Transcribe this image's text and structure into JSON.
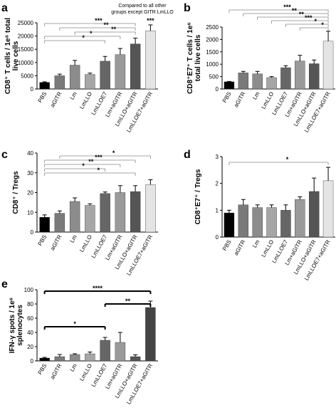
{
  "chart_data": [
    {
      "panel": "a",
      "type": "bar",
      "categories": [
        "PBS",
        "aGITR",
        "Lm",
        "LmLLO",
        "LmLLOE7",
        "Lm+aGITR",
        "LmLLO+aGITR",
        "LmLLOE7+aGITR"
      ],
      "values": [
        2500,
        5000,
        9000,
        5500,
        10500,
        13000,
        17000,
        22000
      ],
      "errors": [
        200,
        600,
        1800,
        500,
        1800,
        2300,
        2200,
        2200
      ],
      "colors": [
        "#000000",
        "#7a7a7a",
        "#8c8c8c",
        "#a6a6a6",
        "#666666",
        "#9a9a9a",
        "#555555",
        "#e4e4e4"
      ],
      "ylabel": [
        "CD8⁺ T cells / 1e⁶ total",
        "live cells"
      ],
      "ylim": [
        0,
        25000
      ],
      "yticks": [
        "0",
        "5000",
        "10000",
        "15000",
        "20000",
        "25000"
      ],
      "annotation": [
        "Compared to all other",
        "groups except GITR LmLLO"
      ],
      "comparisons": [
        {
          "from": 0,
          "to": 6,
          "label": "***"
        },
        {
          "from": 1,
          "to": 6,
          "label": "**"
        },
        {
          "from": 2,
          "to": 6,
          "label": "**"
        },
        {
          "from": 0,
          "to": 5,
          "label": "*"
        },
        {
          "from": 0,
          "to": 4,
          "label": "*"
        }
      ],
      "top_label": {
        "bar": 7,
        "label": "***"
      }
    },
    {
      "panel": "b",
      "type": "bar",
      "categories": [
        "PBS",
        "aGITR",
        "Lm",
        "LmLLO",
        "LmLLOE7",
        "Lm+aGITR",
        "LmLLO+aGITR",
        "LmLLOE7+aGITR"
      ],
      "values": [
        290,
        650,
        610,
        460,
        860,
        1130,
        1020,
        1930
      ],
      "errors": [
        15,
        60,
        100,
        40,
        80,
        230,
        150,
        400
      ],
      "colors": [
        "#000000",
        "#7a7a7a",
        "#8c8c8c",
        "#a6a6a6",
        "#666666",
        "#9a9a9a",
        "#555555",
        "#e4e4e4"
      ],
      "ylabel": [
        "CD8⁺E7⁺ T cells / 1e⁶",
        "total live cells"
      ],
      "ylim": [
        0,
        2500
      ],
      "yticks": [
        "0",
        "500",
        "1000",
        "1500",
        "2000",
        "2500"
      ],
      "comparisons": [
        {
          "from": 0,
          "to": 7,
          "label": "***"
        },
        {
          "from": 1,
          "to": 7,
          "label": "**"
        },
        {
          "from": 2,
          "to": 7,
          "label": "**"
        },
        {
          "from": 3,
          "to": 7,
          "label": "***"
        },
        {
          "from": 4,
          "to": 7,
          "label": "*"
        },
        {
          "from": 5,
          "to": 7,
          "label": "*"
        }
      ]
    },
    {
      "panel": "c",
      "type": "bar",
      "categories": [
        "PBS",
        "aGITR",
        "Lm",
        "LmLLO",
        "LmLLOE7",
        "Lm+aGITR",
        "LmLLO+aGITR",
        "LmLLOE7+aGITR"
      ],
      "values": [
        7.5,
        9.5,
        15.5,
        13.5,
        19.5,
        20,
        20.5,
        24
      ],
      "errors": [
        1.2,
        1.2,
        1.8,
        0.8,
        0.8,
        3.5,
        3,
        2.5
      ],
      "colors": [
        "#000000",
        "#7a7a7a",
        "#8c8c8c",
        "#a6a6a6",
        "#666666",
        "#9a9a9a",
        "#555555",
        "#e4e4e4"
      ],
      "ylabel": [
        "CD8⁺ / Tregs"
      ],
      "ylim": [
        0,
        40
      ],
      "yticks": [
        "0",
        "10",
        "20",
        "30",
        "40"
      ],
      "comparisons": [
        {
          "from": 1,
          "to": 7,
          "label": "*"
        },
        {
          "from": 0,
          "to": 6,
          "label": "***"
        },
        {
          "from": 0,
          "to": 5,
          "label": "**"
        },
        {
          "from": 0,
          "to": 4,
          "label": "*"
        },
        {
          "from": 0,
          "to": 6,
          "label": "*"
        }
      ]
    },
    {
      "panel": "d",
      "type": "bar",
      "categories": [
        "PBS",
        "aGITR",
        "Lm",
        "LmLLO",
        "LmLLOE7",
        "Lm+aGITR",
        "LmLLO+aGITR",
        "LmLLOE7+aGITR"
      ],
      "values": [
        0.9,
        1.2,
        1.1,
        1.1,
        1.0,
        1.4,
        1.7,
        2.1
      ],
      "errors": [
        0.1,
        0.2,
        0.1,
        0.1,
        0.2,
        0.1,
        0.5,
        0.5
      ],
      "colors": [
        "#000000",
        "#7a7a7a",
        "#8c8c8c",
        "#a6a6a6",
        "#666666",
        "#9a9a9a",
        "#555555",
        "#e4e4e4"
      ],
      "ylabel": [
        "CD8⁺E7⁺ / Tregs"
      ],
      "ylim": [
        0,
        3
      ],
      "yticks": [
        "0",
        "1",
        "2",
        "3"
      ],
      "comparisons": [
        {
          "from": 0,
          "to": 7,
          "label": "*"
        }
      ]
    },
    {
      "panel": "e",
      "type": "bar",
      "categories": [
        "PBS",
        "aGITR",
        "Lm",
        "LmLLO",
        "LmLLOE7",
        "Lm+aGITR",
        "LmLLO+aGITR",
        "LmLLOE7+aGITR"
      ],
      "values": [
        4,
        6,
        9,
        10,
        29,
        26,
        6,
        75
      ],
      "errors": [
        1,
        3,
        1,
        2.5,
        4,
        14,
        2.5,
        9
      ],
      "colors": [
        "#000000",
        "#7a7a7a",
        "#8c8c8c",
        "#a6a6a6",
        "#666666",
        "#9a9a9a",
        "#555555",
        "#444444"
      ],
      "ylabel": [
        "IFN-γ spots / 1e⁶",
        "splenocytes"
      ],
      "ylim": [
        0,
        100
      ],
      "yticks": [
        "0",
        "20",
        "40",
        "60",
        "80",
        "100"
      ],
      "comparisons": [
        {
          "from": 0,
          "to": 7,
          "label": "****"
        },
        {
          "from": 4,
          "to": 7,
          "label": "**"
        },
        {
          "from": 0,
          "to": 4,
          "label": "*"
        }
      ],
      "heavy_brackets": true
    }
  ]
}
